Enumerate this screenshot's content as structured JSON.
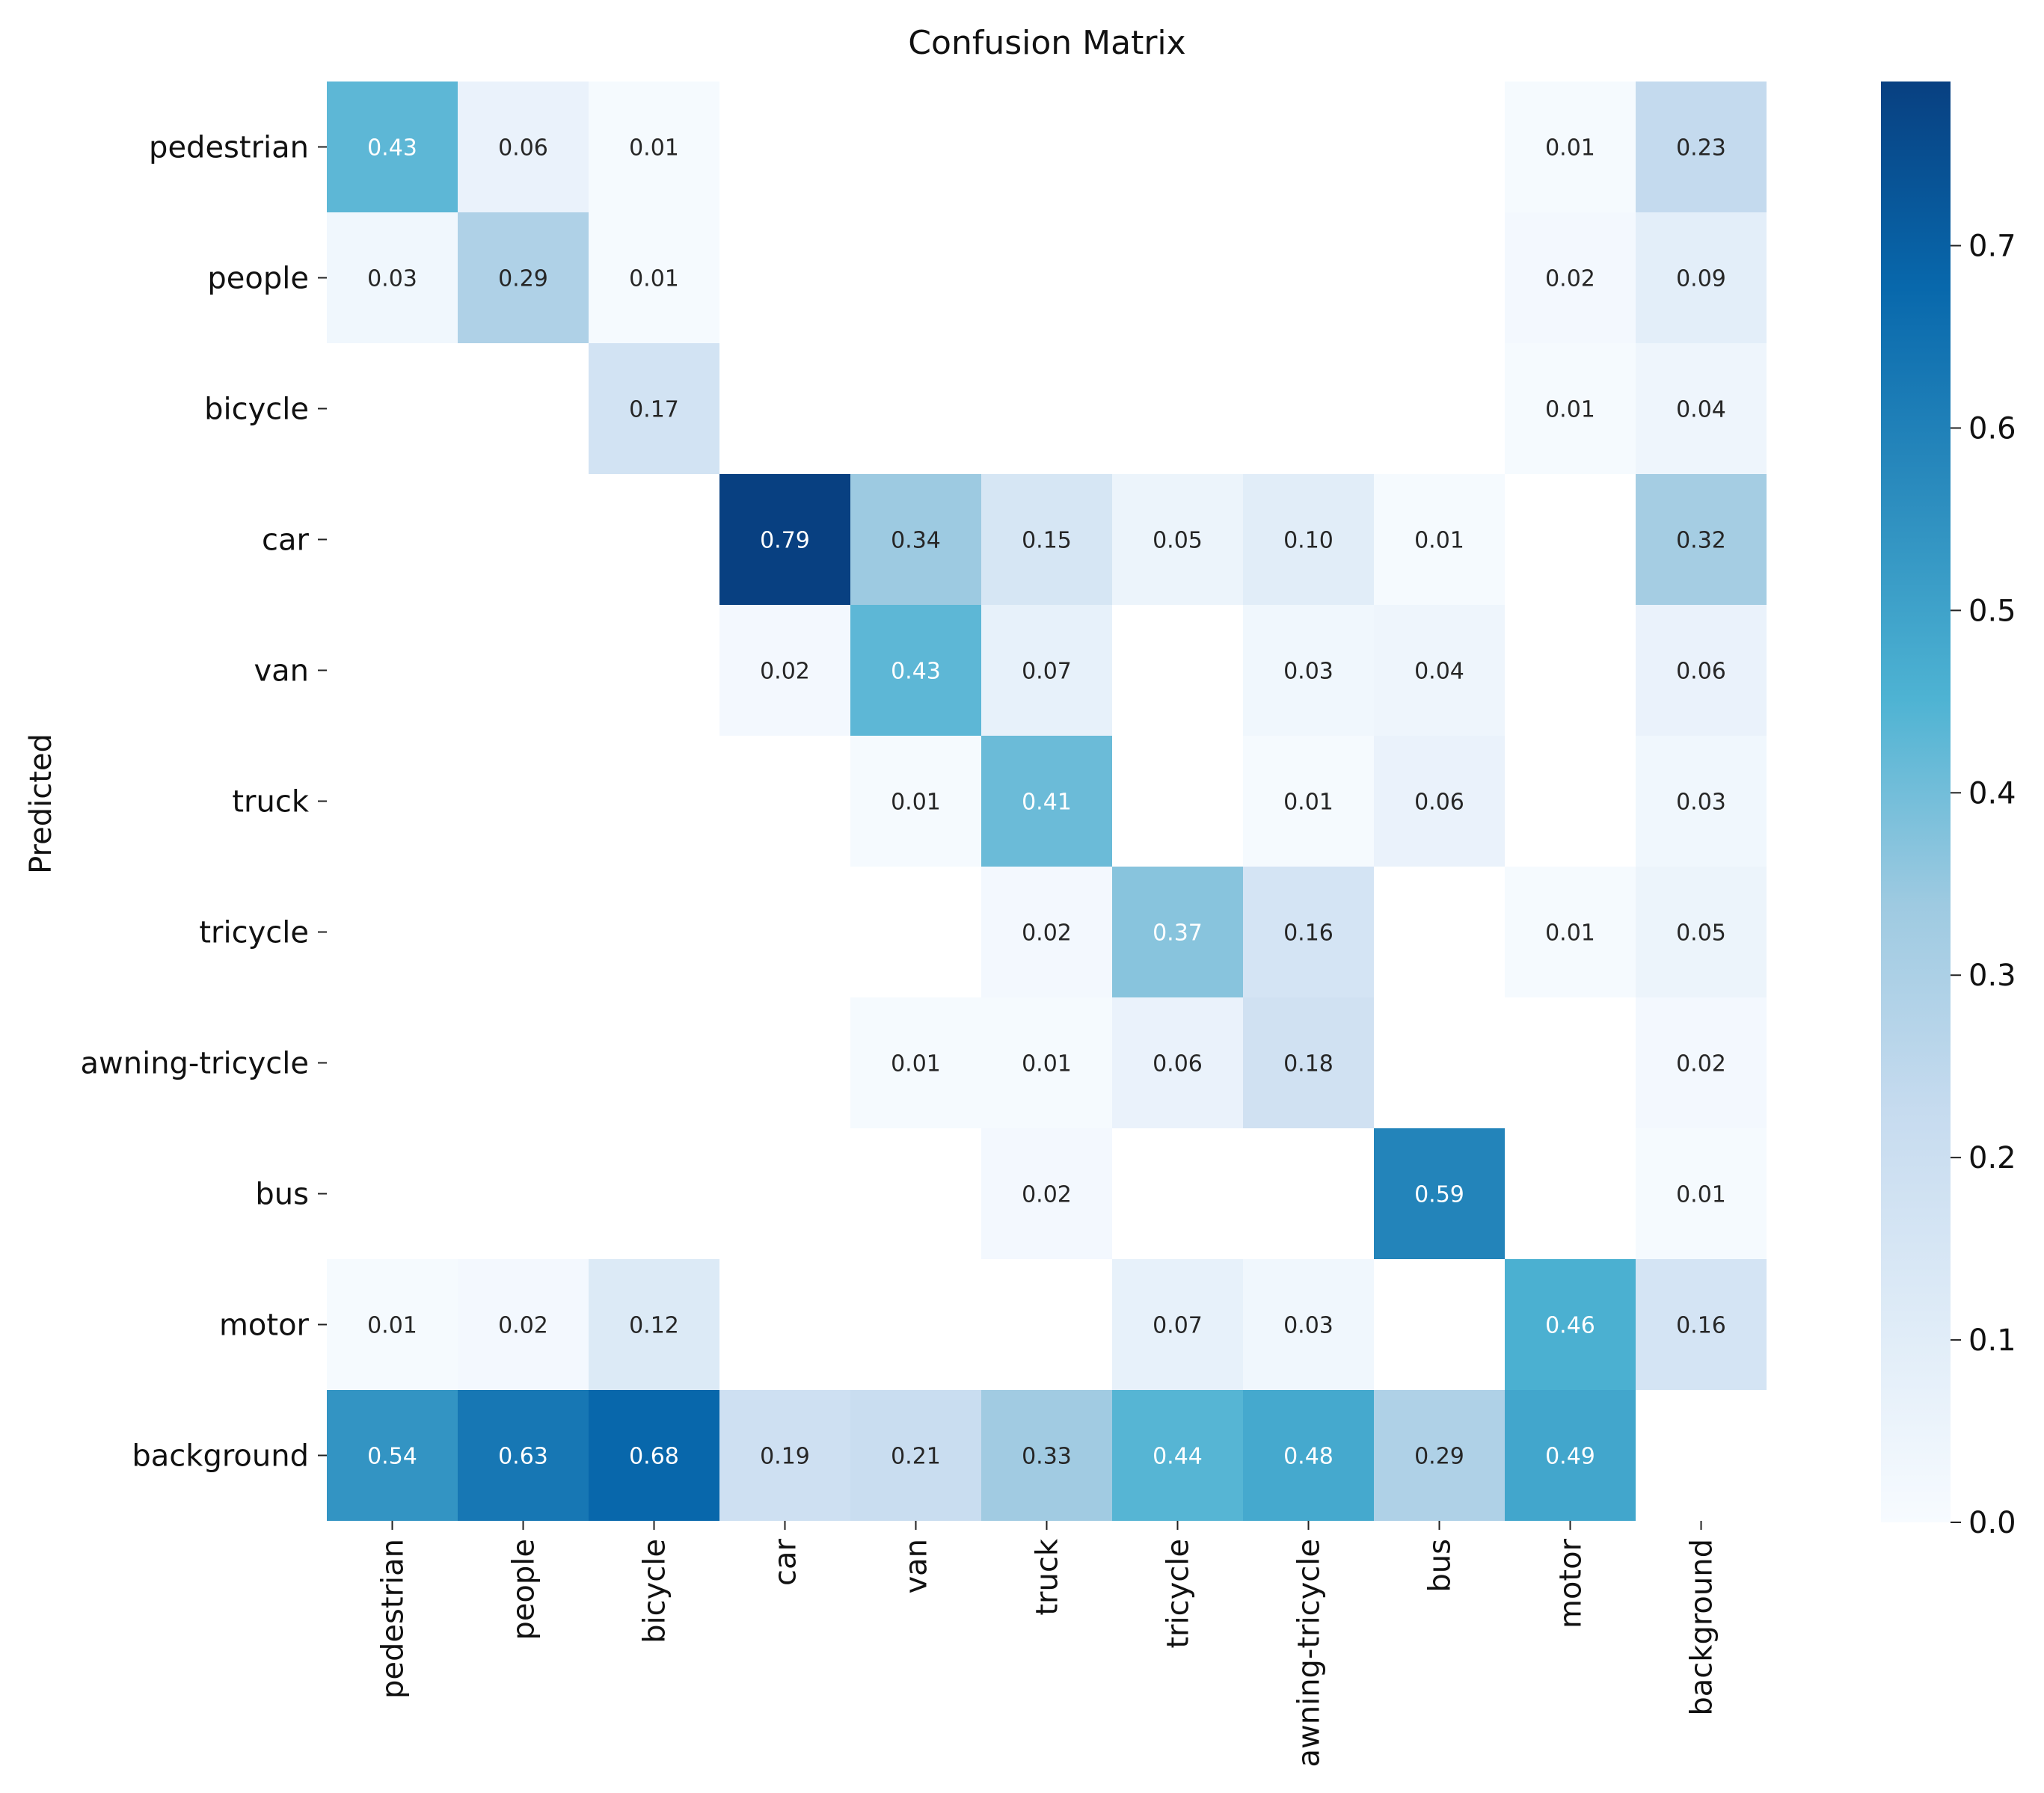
{
  "chart_data": {
    "type": "heatmap",
    "title": "Confusion Matrix",
    "xlabel": "",
    "ylabel": "Predicted",
    "x_categories": [
      "pedestrian",
      "people",
      "bicycle",
      "car",
      "van",
      "truck",
      "tricycle",
      "awning-tricycle",
      "bus",
      "motor",
      "background"
    ],
    "y_categories": [
      "pedestrian",
      "people",
      "bicycle",
      "car",
      "van",
      "truck",
      "tricycle",
      "awning-tricycle",
      "bus",
      "motor",
      "background"
    ],
    "values": [
      [
        0.43,
        0.06,
        0.01,
        null,
        null,
        null,
        null,
        null,
        null,
        0.01,
        0.23
      ],
      [
        0.03,
        0.29,
        0.01,
        null,
        null,
        null,
        null,
        null,
        null,
        0.02,
        0.09
      ],
      [
        null,
        null,
        0.17,
        null,
        null,
        null,
        null,
        null,
        null,
        0.01,
        0.04
      ],
      [
        null,
        null,
        null,
        0.79,
        0.34,
        0.15,
        0.05,
        0.1,
        0.01,
        null,
        0.32
      ],
      [
        null,
        null,
        null,
        0.02,
        0.43,
        0.07,
        null,
        0.03,
        0.04,
        null,
        0.06
      ],
      [
        null,
        null,
        null,
        null,
        0.01,
        0.41,
        null,
        0.01,
        0.06,
        null,
        0.03
      ],
      [
        null,
        null,
        null,
        null,
        null,
        0.02,
        0.37,
        0.16,
        null,
        0.01,
        0.05
      ],
      [
        null,
        null,
        null,
        null,
        0.01,
        0.01,
        0.06,
        0.18,
        null,
        null,
        0.02
      ],
      [
        null,
        null,
        null,
        null,
        null,
        0.02,
        null,
        null,
        0.59,
        null,
        0.01
      ],
      [
        0.01,
        0.02,
        0.12,
        null,
        null,
        null,
        0.07,
        0.03,
        null,
        0.46,
        0.16
      ],
      [
        0.54,
        0.63,
        0.68,
        0.19,
        0.21,
        0.33,
        0.44,
        0.48,
        0.29,
        0.49,
        null
      ]
    ],
    "colorbar": {
      "range": [
        0.0,
        0.79
      ],
      "ticks": [
        0.0,
        0.1,
        0.2,
        0.3,
        0.4,
        0.5,
        0.6,
        0.7
      ],
      "tick_labels": [
        "0.0",
        "0.1",
        "0.2",
        "0.3",
        "0.4",
        "0.5",
        "0.6",
        "0.7"
      ],
      "colormap": "Blues",
      "colors": [
        "#f7fbff",
        "#deebf7",
        "#c6dbef",
        "#9ecae1",
        "#4eb3d3",
        "#2b8cbe",
        "#0868ac",
        "#084081"
      ]
    },
    "grid": false
  }
}
